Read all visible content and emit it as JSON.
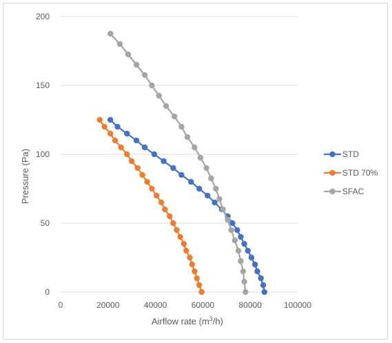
{
  "chart_data": {
    "type": "scatter",
    "title": "",
    "xlabel_prefix": "Airflow rate (m",
    "xlabel_sup": "3",
    "xlabel_suffix": "/h)",
    "ylabel": "Pressure (Pa)",
    "xlim": [
      0,
      100000
    ],
    "ylim": [
      0,
      200
    ],
    "x_ticks": [
      0,
      20000,
      40000,
      60000,
      80000,
      100000
    ],
    "y_ticks": [
      0,
      50,
      100,
      150,
      200
    ],
    "grid": "horizontal",
    "legend_position": "right",
    "series": [
      {
        "name": "STD",
        "color": "#4472C4",
        "points": [
          [
            21000,
            125
          ],
          [
            24000,
            120
          ],
          [
            28000,
            115
          ],
          [
            32000,
            110
          ],
          [
            35500,
            105
          ],
          [
            39500,
            100
          ],
          [
            43500,
            95
          ],
          [
            47500,
            90
          ],
          [
            51000,
            85
          ],
          [
            55000,
            80
          ],
          [
            58500,
            75
          ],
          [
            62000,
            70
          ],
          [
            65000,
            65
          ],
          [
            68000,
            60
          ],
          [
            70500,
            55
          ],
          [
            72500,
            50
          ],
          [
            74500,
            45
          ],
          [
            76000,
            40
          ],
          [
            77500,
            35
          ],
          [
            79000,
            30
          ],
          [
            80500,
            25
          ],
          [
            82000,
            20
          ],
          [
            83000,
            15
          ],
          [
            84500,
            10
          ],
          [
            85500,
            5
          ],
          [
            86000,
            0
          ]
        ]
      },
      {
        "name": "STD 70%",
        "color": "#ED7D31",
        "points": [
          [
            16500,
            125
          ],
          [
            18500,
            120
          ],
          [
            21000,
            115
          ],
          [
            23000,
            110
          ],
          [
            25500,
            105
          ],
          [
            28000,
            100
          ],
          [
            30000,
            95
          ],
          [
            32500,
            90
          ],
          [
            34500,
            85
          ],
          [
            36500,
            80
          ],
          [
            38500,
            75
          ],
          [
            40500,
            70
          ],
          [
            42500,
            65
          ],
          [
            44000,
            60
          ],
          [
            46000,
            55
          ],
          [
            47500,
            50
          ],
          [
            49000,
            45
          ],
          [
            50500,
            40
          ],
          [
            52000,
            35
          ],
          [
            53000,
            30
          ],
          [
            54500,
            25
          ],
          [
            55500,
            20
          ],
          [
            56500,
            15
          ],
          [
            57500,
            10
          ],
          [
            58500,
            5
          ],
          [
            59500,
            0
          ]
        ]
      },
      {
        "name": "SFAC",
        "color": "#A5A5A5",
        "points": [
          [
            21000,
            187.5
          ],
          [
            25000,
            180
          ],
          [
            28500,
            172.5
          ],
          [
            32000,
            165
          ],
          [
            35500,
            157.5
          ],
          [
            38500,
            150
          ],
          [
            41500,
            142.5
          ],
          [
            44500,
            135
          ],
          [
            48000,
            127.5
          ],
          [
            51000,
            120
          ],
          [
            53500,
            112.5
          ],
          [
            56500,
            105
          ],
          [
            59000,
            97.5
          ],
          [
            61500,
            90
          ],
          [
            63500,
            82.5
          ],
          [
            65500,
            75
          ],
          [
            67000,
            67.5
          ],
          [
            68500,
            60
          ],
          [
            70500,
            52.5
          ],
          [
            72000,
            45
          ],
          [
            73500,
            37.5
          ],
          [
            75000,
            30
          ],
          [
            76000,
            22.5
          ],
          [
            77000,
            15
          ],
          [
            77500,
            7.5
          ],
          [
            78000,
            0
          ]
        ]
      }
    ]
  }
}
